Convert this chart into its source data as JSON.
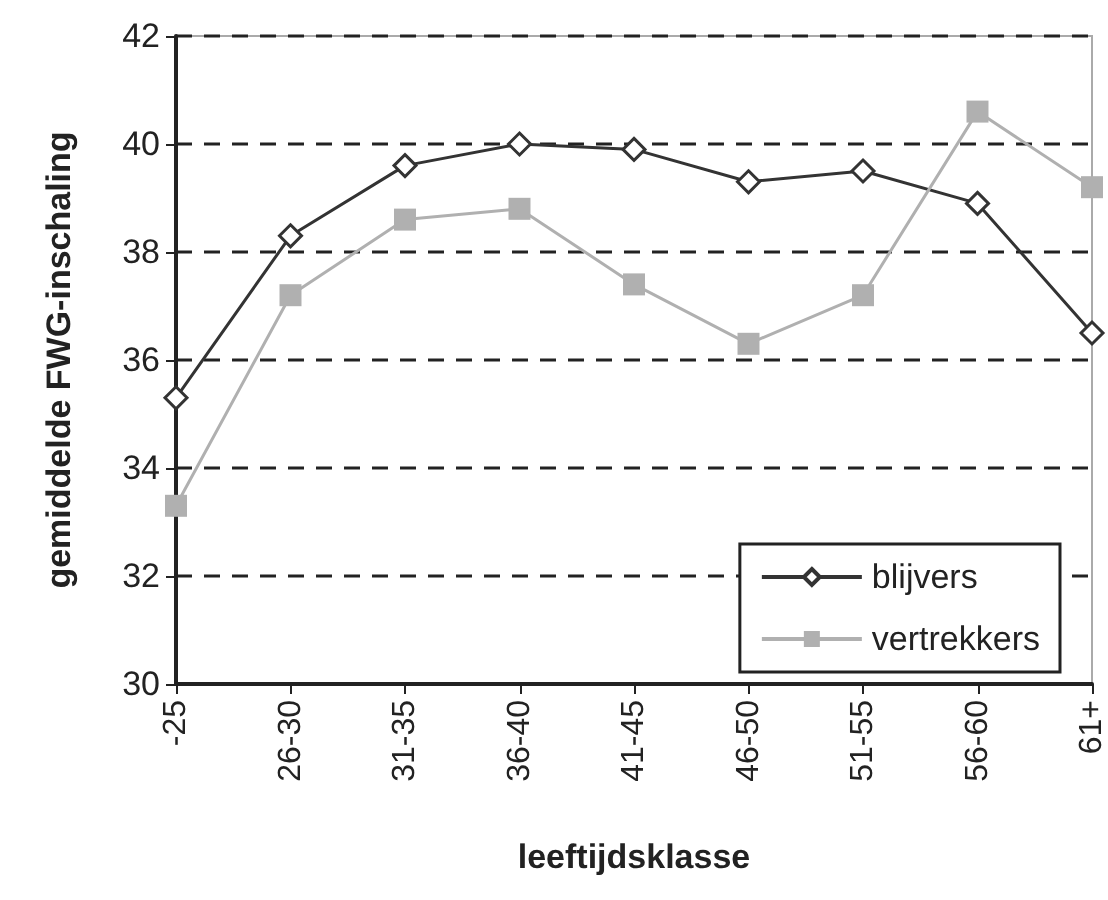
{
  "chart_data": {
    "type": "line",
    "xlabel": "leeftijdsklasse",
    "ylabel": "gemiddelde FWG-inschaling",
    "categories": [
      "-25",
      "26-30",
      "31-35",
      "36-40",
      "41-45",
      "46-50",
      "51-55",
      "56-60",
      "61+"
    ],
    "series": [
      {
        "name": "blijvers",
        "color": "#333333",
        "marker": "diamond",
        "values": [
          35.3,
          38.3,
          39.6,
          40.0,
          39.9,
          39.3,
          39.5,
          38.9,
          36.5
        ]
      },
      {
        "name": "vertrekkers",
        "color": "#b0b0b0",
        "marker": "square",
        "values": [
          33.3,
          37.2,
          38.6,
          38.8,
          37.4,
          36.3,
          37.2,
          40.6,
          39.2
        ]
      }
    ],
    "ylim": [
      30,
      42
    ],
    "yticks": [
      30,
      32,
      34,
      36,
      38,
      40,
      42
    ],
    "grid": "y",
    "legend": "bottom right"
  }
}
